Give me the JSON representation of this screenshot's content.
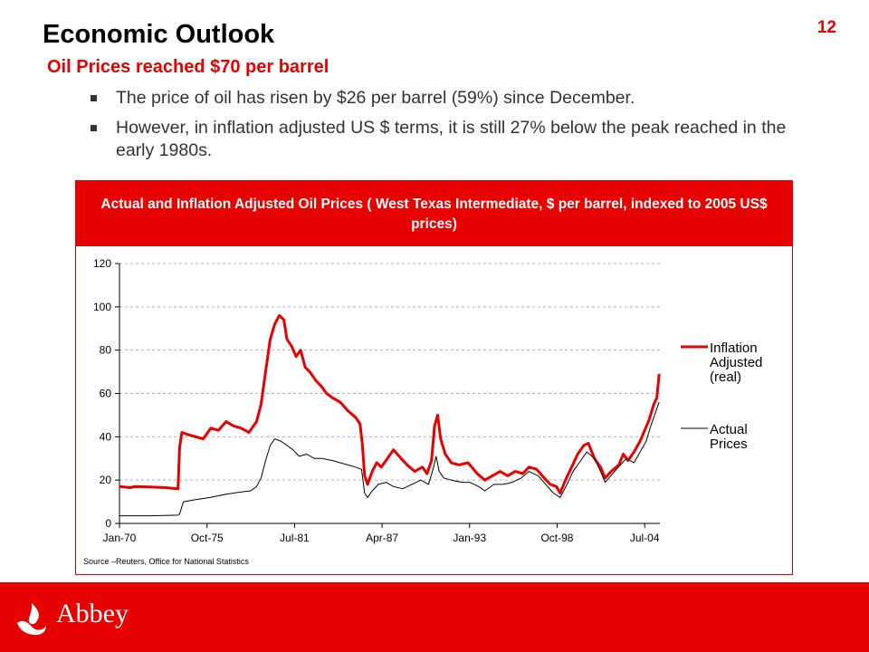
{
  "slide": {
    "page_number": "12",
    "title": "Economic Outlook",
    "subtitle": "Oil Prices reached $70 per barrel",
    "bullets": [
      "The price of oil has risen by $26 per barrel (59%) since December.",
      "However, in inflation adjusted US $ terms, it is still 27% below the peak reached in the early 1980s."
    ]
  },
  "chart_header": "Actual and Inflation Adjusted Oil Prices ( West Texas Intermediate, $ per barrel, indexed to 2005 US$ prices)",
  "source": "Source –Reuters, Office for National Statistics",
  "footer": {
    "brand": "Abbey"
  },
  "colors": {
    "accent": "#e60000",
    "real_series": "#e60000",
    "actual_series": "#000000",
    "grid": "#b0b0b0"
  },
  "chart_data": {
    "type": "line",
    "title": "",
    "xlabel": "",
    "ylabel": "",
    "ylim": [
      0,
      120
    ],
    "yticks": [
      0,
      20,
      40,
      60,
      80,
      100,
      120
    ],
    "xlim": [
      1970.0,
      2005.5
    ],
    "xticks": [
      {
        "label": "Jan-70",
        "x": 1970.0
      },
      {
        "label": "Oct-75",
        "x": 1975.75
      },
      {
        "label": "Jul-81",
        "x": 1981.5
      },
      {
        "label": "Apr-87",
        "x": 1987.25
      },
      {
        "label": "Jan-93",
        "x": 1993.0
      },
      {
        "label": "Oct-98",
        "x": 1998.75
      },
      {
        "label": "Jul-04",
        "x": 2004.5
      }
    ],
    "grid": "horizontal dashed",
    "legend_position": "right",
    "series": [
      {
        "name": "Inflation Adjusted (real)",
        "color": "#e60000",
        "x": [
          1970.0,
          1970.7,
          1971.0,
          1972.0,
          1973.0,
          1973.85,
          1973.95,
          1974.1,
          1974.5,
          1975.0,
          1975.5,
          1976.0,
          1976.5,
          1977.0,
          1977.5,
          1978.0,
          1978.5,
          1979.0,
          1979.3,
          1979.6,
          1979.9,
          1980.2,
          1980.5,
          1980.8,
          1981.0,
          1981.3,
          1981.6,
          1981.9,
          1982.2,
          1982.5,
          1982.9,
          1983.3,
          1983.6,
          1984.0,
          1984.5,
          1985.0,
          1985.5,
          1985.8,
          1985.95,
          1986.1,
          1986.3,
          1986.6,
          1986.9,
          1987.2,
          1987.6,
          1988.0,
          1988.5,
          1988.9,
          1989.4,
          1989.9,
          1990.2,
          1990.5,
          1990.7,
          1990.9,
          1991.1,
          1991.4,
          1991.8,
          1992.3,
          1992.9,
          1993.5,
          1994.0,
          1994.5,
          1995.0,
          1995.5,
          1996.0,
          1996.5,
          1996.9,
          1997.4,
          1997.9,
          1998.3,
          1998.7,
          1998.95,
          1999.3,
          1999.7,
          2000.1,
          2000.5,
          2000.8,
          2001.2,
          2001.6,
          2001.9,
          2002.3,
          2002.8,
          2003.1,
          2003.4,
          2003.8,
          2004.2,
          2004.5,
          2004.8,
          2005.1,
          2005.3,
          2005.45
        ],
        "values": [
          17,
          16.5,
          17,
          16.8,
          16.5,
          16,
          35,
          42,
          41,
          40,
          39,
          44,
          43,
          47,
          45,
          44,
          42,
          47,
          55,
          70,
          85,
          92,
          96,
          94,
          85,
          82,
          77,
          80,
          72,
          70,
          66,
          63,
          60,
          58,
          56,
          52,
          49,
          46,
          37,
          22,
          18,
          24,
          28,
          26,
          30,
          34,
          30,
          27,
          24,
          26,
          23,
          29,
          45,
          50,
          39,
          32,
          28,
          27,
          28,
          23,
          20,
          22,
          24,
          22,
          24,
          23,
          26,
          25,
          21,
          18,
          17,
          14,
          20,
          26,
          32,
          36,
          37,
          30,
          26,
          21,
          24,
          27,
          32,
          29,
          33,
          38,
          43,
          48,
          55,
          58,
          69
        ]
      },
      {
        "name": "Actual Prices",
        "color": "#000000",
        "x": [
          1970.0,
          1972.0,
          1973.85,
          1973.95,
          1974.2,
          1975.0,
          1976.0,
          1977.0,
          1978.0,
          1978.6,
          1979.0,
          1979.3,
          1979.6,
          1979.9,
          1980.2,
          1980.6,
          1981.0,
          1981.4,
          1981.8,
          1982.3,
          1982.8,
          1983.3,
          1984.0,
          1985.0,
          1985.5,
          1985.9,
          1986.1,
          1986.3,
          1986.6,
          1987.0,
          1987.5,
          1988.0,
          1988.6,
          1989.2,
          1989.8,
          1990.3,
          1990.6,
          1990.8,
          1991.0,
          1991.3,
          1991.8,
          1992.5,
          1993.0,
          1993.6,
          1994.0,
          1994.6,
          1995.2,
          1995.8,
          1996.4,
          1996.9,
          1997.5,
          1998.0,
          1998.5,
          1998.95,
          1999.4,
          1999.8,
          2000.2,
          2000.7,
          2001.2,
          2001.6,
          2001.9,
          2002.4,
          2002.9,
          2003.3,
          2003.8,
          2004.2,
          2004.6,
          2004.9,
          2005.2,
          2005.45
        ],
        "values": [
          3.5,
          3.5,
          3.8,
          4.3,
          10,
          11,
          12,
          13.5,
          14.5,
          15,
          17,
          21,
          29,
          36,
          39,
          38,
          36,
          34,
          31,
          32,
          30,
          30,
          29,
          27,
          26,
          25,
          14,
          12,
          15,
          18,
          19,
          17,
          16,
          18,
          20,
          18,
          25,
          31,
          24,
          21,
          20,
          19,
          19,
          17,
          15,
          18,
          18,
          19,
          21,
          24,
          22,
          18,
          14,
          12,
          18,
          24,
          28,
          33,
          30,
          24,
          19,
          23,
          27,
          30,
          28,
          33,
          38,
          45,
          51,
          56
        ]
      }
    ]
  }
}
